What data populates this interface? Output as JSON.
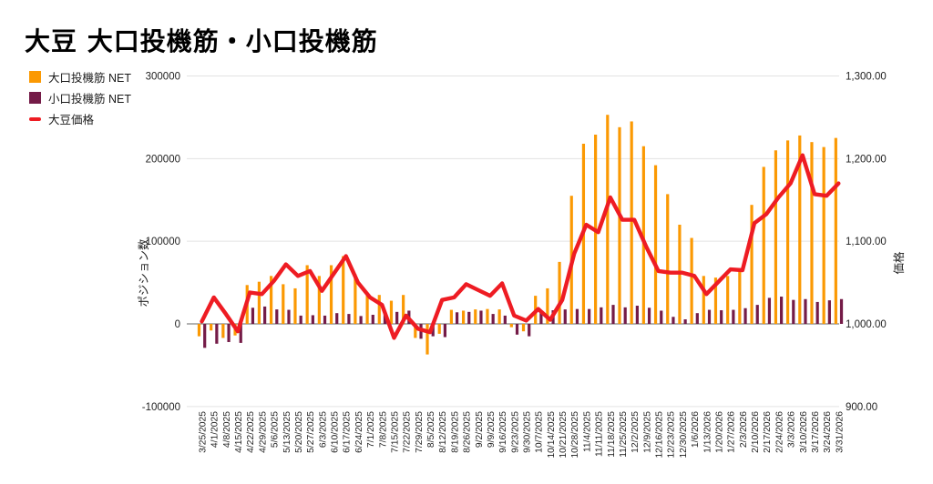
{
  "title": "大豆 大口投機筋・小口投機筋",
  "legend": [
    {
      "label": "大口投機筋  NET",
      "color": "#FB9903",
      "swatch": "square"
    },
    {
      "label": "小口投機筋  NET",
      "color": "#741B47",
      "swatch": "square"
    },
    {
      "label": "大豆価格",
      "color": "#EE1C23",
      "swatch": "line"
    }
  ],
  "chart_data": {
    "type": "bar",
    "subtype": "combo-bar-line",
    "title": "大豆 大口投機筋・小口投機筋",
    "categories": [
      "3/25/2025",
      "4/1/2025",
      "4/8/2025",
      "4/15/2025",
      "4/22/2025",
      "4/29/2025",
      "5/6/2025",
      "5/13/2025",
      "5/20/2025",
      "5/27/2025",
      "6/3/2025",
      "6/10/2025",
      "6/17/2025",
      "6/24/2025",
      "7/1/2025",
      "7/8/2025",
      "7/15/2025",
      "7/22/2025",
      "7/29/2025",
      "8/5/2025",
      "8/12/2025",
      "8/19/2025",
      "8/26/2025",
      "9/2/2025",
      "9/9/2025",
      "9/16/2025",
      "9/23/2025",
      "9/30/2025",
      "10/7/2025",
      "10/14/2025",
      "10/21/2025",
      "10/28/2025",
      "11/4/2025",
      "11/11/2025",
      "11/18/2025",
      "11/25/2025",
      "12/2/2025",
      "12/9/2025",
      "12/16/2025",
      "12/23/2025",
      "12/30/2025",
      "1/6/2026",
      "1/13/2026",
      "1/20/2026",
      "1/27/2026",
      "2/3/2026",
      "2/10/2026",
      "2/17/2026",
      "2/24/2026",
      "3/3/2026",
      "3/10/2026",
      "3/17/2026",
      "3/24/2026",
      "3/31/2026"
    ],
    "series": [
      {
        "name": "大口投機筋 NET",
        "type": "bar",
        "axis": "left",
        "color": "#FB9903",
        "values": [
          -15000,
          -8000,
          -17000,
          -14000,
          47000,
          51000,
          58000,
          48000,
          43000,
          71000,
          58000,
          71000,
          82000,
          60000,
          36000,
          35000,
          28000,
          35000,
          -17000,
          -37000,
          -12000,
          17000,
          16000,
          17500,
          18000,
          17500,
          -4000,
          -9000,
          34000,
          43000,
          75000,
          155000,
          218000,
          229000,
          253000,
          238000,
          245000,
          215000,
          192000,
          157000,
          120000,
          104000,
          58000,
          56000,
          58000,
          66000,
          144000,
          190000,
          210000,
          222000,
          228000,
          220000,
          214000,
          225000
        ]
      },
      {
        "name": "小口投機筋 NET",
        "type": "bar",
        "axis": "left",
        "color": "#741B47",
        "values": [
          -29000,
          -24000,
          -22000,
          -23000,
          19500,
          21000,
          17500,
          17000,
          10000,
          10500,
          10000,
          13000,
          12000,
          9500,
          11000,
          14000,
          14500,
          16000,
          -18000,
          -15000,
          -16000,
          14000,
          14500,
          16000,
          12000,
          10000,
          -13000,
          -15000,
          16000,
          16500,
          17500,
          18000,
          18000,
          20000,
          23000,
          20000,
          22000,
          19500,
          16000,
          8500,
          5500,
          13000,
          17000,
          16500,
          17000,
          19000,
          23000,
          31500,
          33000,
          29000,
          30000,
          26500,
          28500,
          30000
        ]
      },
      {
        "name": "大豆価格",
        "type": "line",
        "axis": "right",
        "color": "#EE1C23",
        "values": [
          1003,
          1032,
          1012,
          991,
          1038,
          1036,
          1052,
          1072,
          1058,
          1064,
          1040,
          1061,
          1082,
          1050,
          1032,
          1023,
          983,
          1010,
          994,
          990,
          1029,
          1032,
          1048,
          1041,
          1034,
          1049,
          1010,
          1004,
          1018,
          1005,
          1029,
          1085,
          1120,
          1111,
          1153,
          1126,
          1126,
          1093,
          1064,
          1062,
          1062,
          1058,
          1036,
          1051,
          1066,
          1065,
          1122,
          1133,
          1153,
          1170,
          1204,
          1157,
          1155,
          1170
        ]
      }
    ],
    "left_axis": {
      "title": "ポジション数",
      "ticks": [
        300000,
        200000,
        100000,
        0,
        -100000
      ],
      "tick_labels": [
        "300000",
        "200000",
        "100000",
        "0",
        "-100000"
      ],
      "range": [
        -100000,
        300000
      ]
    },
    "right_axis": {
      "title": "価格",
      "ticks": [
        1300,
        1200,
        1100,
        1000,
        900
      ],
      "tick_labels": [
        "1,300.00",
        "1,200.00",
        "1,100.00",
        "1,000.00",
        "900.00"
      ],
      "range": [
        900,
        1300
      ]
    },
    "grid": true,
    "legend_position": "top-left",
    "colors": {
      "grid": "#e3e3e3",
      "zero_line": "#666666",
      "text": "#1f1f1f"
    }
  }
}
